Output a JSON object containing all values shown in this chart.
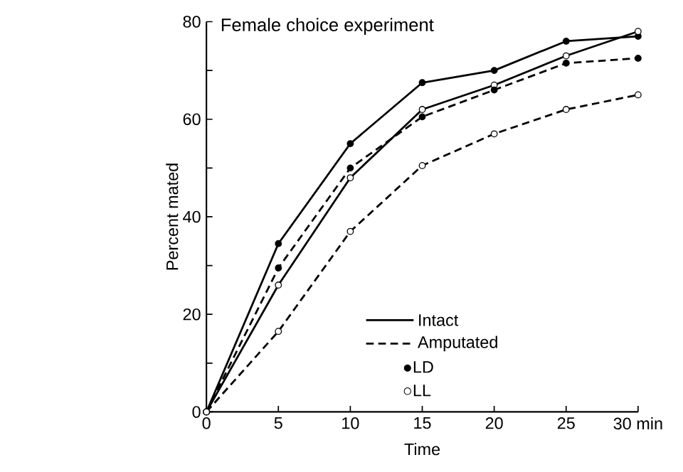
{
  "chart_data": {
    "type": "line",
    "title": "Female choice experiment",
    "xlabel": "Time",
    "ylabel": "Percent mated",
    "x": [
      0,
      5,
      10,
      15,
      20,
      25,
      30
    ],
    "series": [
      {
        "color": "#000000",
        "line_style": "solid",
        "marker": "circle",
        "colors": [
          "#000000",
          "#000000",
          "#000000",
          "#000000",
          "#000000",
          "#000000",
          "#000000"
        ],
        "values": [
          0,
          34.5,
          55,
          67.5,
          70,
          76,
          77
        ]
      },
      {
        "color": "#000000",
        "line_style": "solid",
        "marker": "circle",
        "colors": [
          "#ffffff",
          "#ffffff",
          "#ffffff",
          "#ffffff",
          "#ffffff",
          "#ffffff",
          "#ffffff"
        ],
        "values": [
          0,
          26,
          48,
          62,
          67,
          73,
          78
        ]
      },
      {
        "color": "#000000",
        "line_style": "dashed",
        "marker": "circle",
        "colors": [
          "#000000",
          "#000000",
          "#000000",
          "#000000",
          "#000000",
          "#000000",
          "#000000"
        ],
        "values": [
          0,
          29.5,
          50,
          60.5,
          66,
          71.5,
          72.5
        ]
      },
      {
        "color": "#000000",
        "line_style": "dashed",
        "marker": "circle",
        "colors": [
          "#ffffff",
          "#ffffff",
          "#ffffff",
          "#ffffff",
          "#ffffff",
          "#ffffff",
          "#ffffff"
        ],
        "values": [
          0,
          16.5,
          37,
          50.5,
          57,
          62,
          65
        ]
      }
    ],
    "annotations": [
      "Intact",
      "Amputated",
      "●LD",
      "○LL"
    ],
    "xlim": [
      0,
      30
    ],
    "ylim": [
      0,
      80
    ],
    "xticks": [
      0,
      5,
      10,
      15,
      20,
      25,
      {
        "value": 30,
        "label": "30 min"
      }
    ],
    "yticks": [
      0,
      {
        "value": 10,
        "label": null
      },
      20,
      {
        "value": 30,
        "label": null
      },
      40,
      {
        "value": 50,
        "label": null
      },
      60,
      {
        "value": 70,
        "label": null
      },
      80
    ],
    "grid": false
  }
}
